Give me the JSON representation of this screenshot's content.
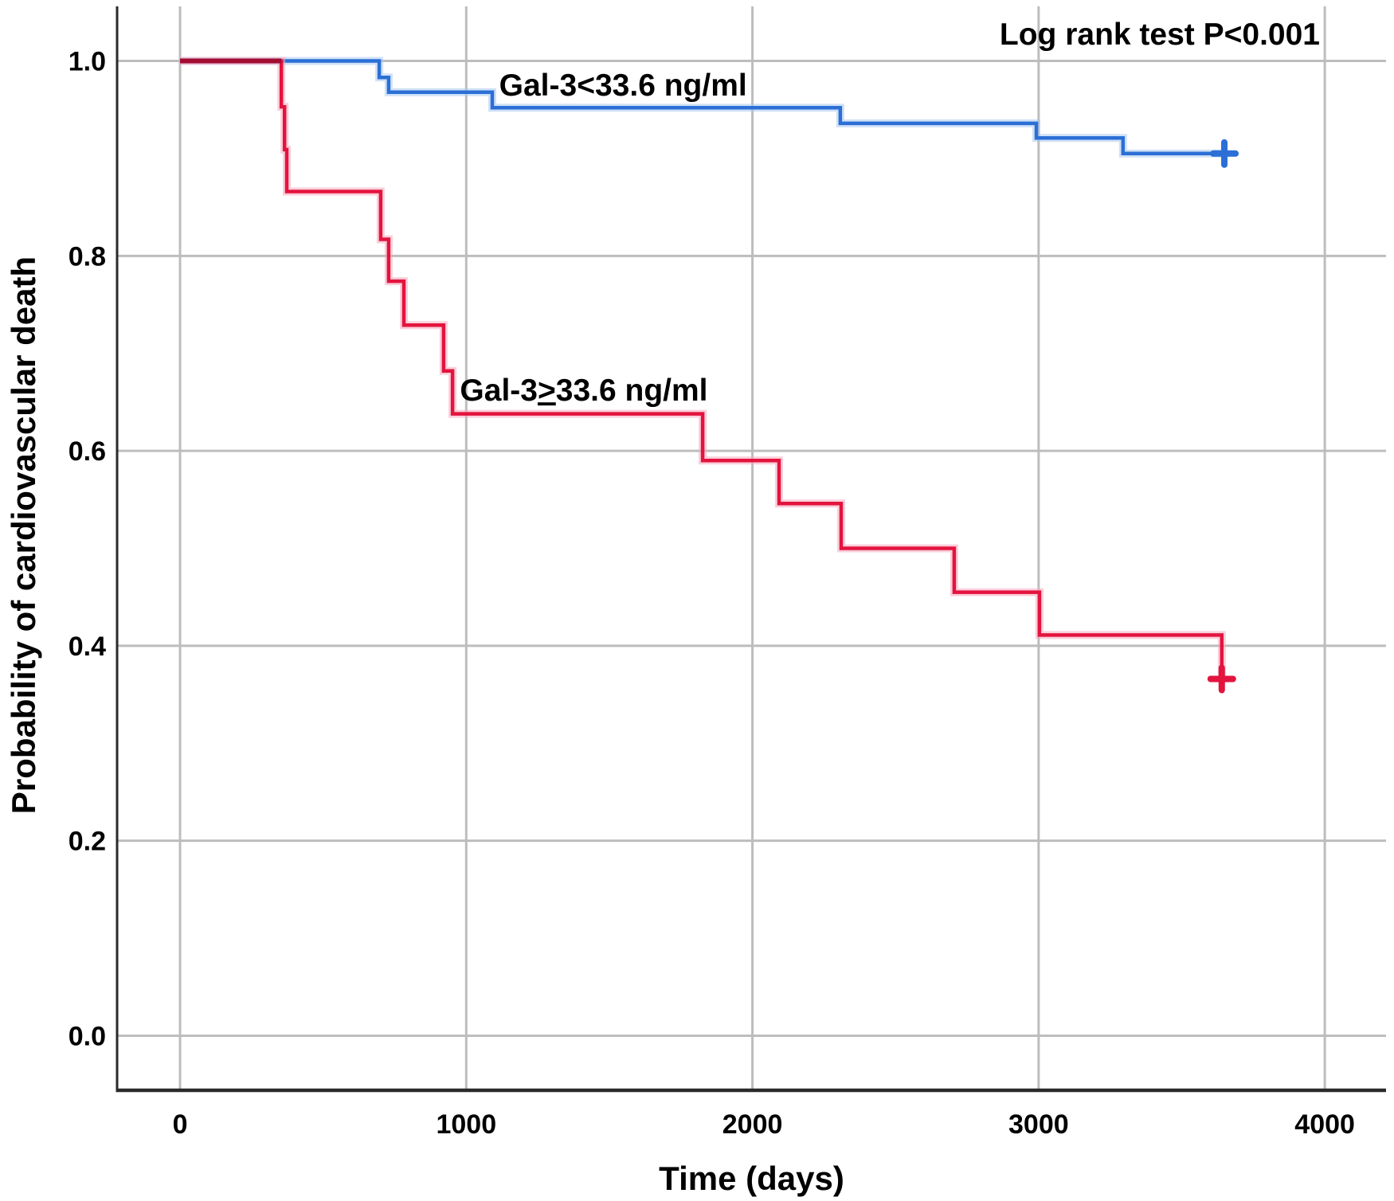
{
  "colors": {
    "background": "#ffffff",
    "grid": "#bdbdbd",
    "axis": "#2a2a2a",
    "text": "#000000",
    "blue_curve": "#2b6fd6",
    "blue_halo": "#a9c8f0",
    "red_curve": "#e3143e",
    "red_halo": "#f6a8bd",
    "overlap": "#a30d32"
  },
  "chart_data": {
    "type": "line",
    "subtype": "kaplan_meier_step",
    "title": "",
    "annotation": "Log rank test P<0.001",
    "xlabel": "Time (days)",
    "ylabel": "Probability of cardiovascular death",
    "xlim": [
      -220,
      4214
    ],
    "ylim": [
      -0.056,
      1.056
    ],
    "grid": true,
    "legend_position": "inline-labels",
    "xticks": [
      {
        "value": 0,
        "label": "0"
      },
      {
        "value": 1000,
        "label": "1000"
      },
      {
        "value": 2000,
        "label": "2000"
      },
      {
        "value": 3000,
        "label": "3000"
      },
      {
        "value": 4000,
        "label": "4000"
      }
    ],
    "yticks": [
      {
        "value": 0.0,
        "label": "0.0"
      },
      {
        "value": 0.2,
        "label": "0.2"
      },
      {
        "value": 0.4,
        "label": "0.4"
      },
      {
        "value": 0.6,
        "label": "0.6"
      },
      {
        "value": 0.8,
        "label": "0.8"
      },
      {
        "value": 1.0,
        "label": "1.0"
      }
    ],
    "series": [
      {
        "id": "gal3-low",
        "name": "Gal-3<33.6 ng/ml",
        "color": "#2b6fd6",
        "halo_color": "#a9c8f0",
        "label": {
          "pre": "Gal-3",
          "cmp": "<",
          "post": "33.6 ng/ml",
          "underline_cmp": false,
          "x": 1548,
          "y": 0.975
        },
        "points": [
          [
            0,
            1.0
          ],
          [
            696,
            0.983
          ],
          [
            729,
            0.968
          ],
          [
            1091,
            0.952
          ],
          [
            2307,
            0.936
          ],
          [
            2992,
            0.921
          ],
          [
            3295,
            0.905
          ]
        ],
        "censor": {
          "x": 3649,
          "y": 0.905
        }
      },
      {
        "id": "gal3-high",
        "name": "Gal-3≥33.6 ng/ml",
        "color": "#e3143e",
        "halo_color": "#f6a8bd",
        "label": {
          "pre": "Gal-3",
          "cmp": ">",
          "post": "33.6 ng/ml",
          "underline_cmp": true,
          "x": 1411,
          "y": 0.662
        },
        "points": [
          [
            0,
            1.0
          ],
          [
            354,
            0.953
          ],
          [
            365,
            0.909
          ],
          [
            373,
            0.866
          ],
          [
            701,
            0.817
          ],
          [
            729,
            0.774
          ],
          [
            782,
            0.729
          ],
          [
            921,
            0.682
          ],
          [
            952,
            0.638
          ],
          [
            1826,
            0.59
          ],
          [
            2093,
            0.546
          ],
          [
            2310,
            0.5
          ],
          [
            2705,
            0.455
          ],
          [
            3003,
            0.411
          ],
          [
            3640,
            0.366
          ]
        ],
        "censor": {
          "x": 3640,
          "y": 0.366
        }
      }
    ],
    "overlap_segment": {
      "from": 0,
      "to": 354,
      "at": 1.0,
      "color": "#a30d32"
    }
  }
}
